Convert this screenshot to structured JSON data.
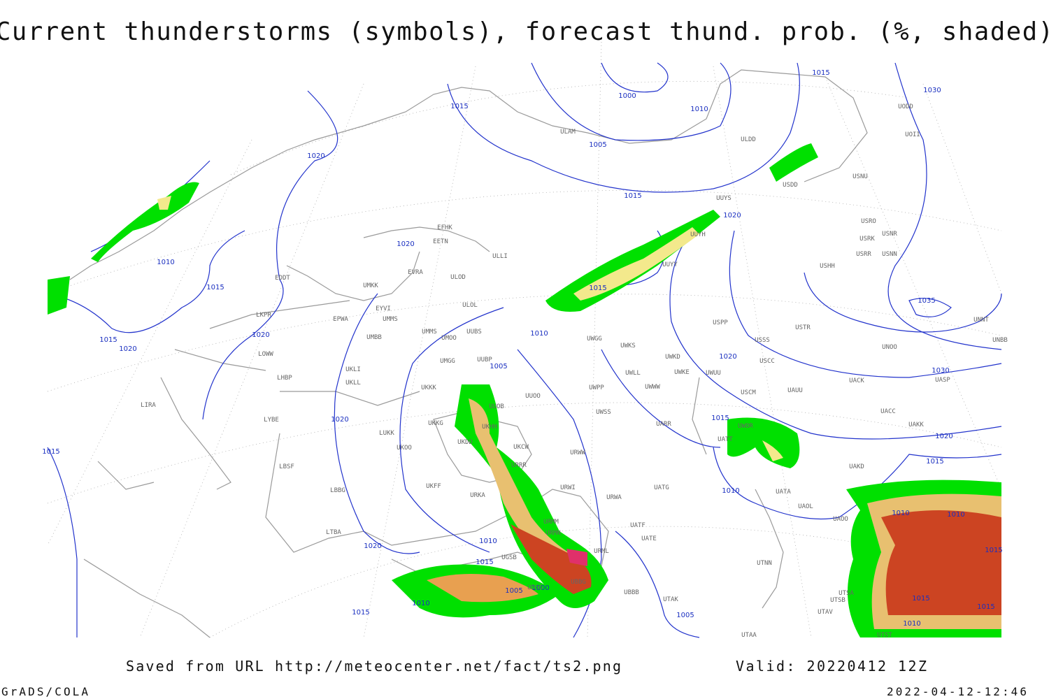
{
  "title": "Current thunderstorms (symbols), forecast thund. prob. (%, shaded)",
  "footer": {
    "saved": "Saved from URL http://meteocenter.net/fact/ts2.png",
    "valid": "Valid: 20220412 12Z",
    "software": "GrADS/COLA",
    "timestamp": "2022-04-12-12:46"
  },
  "map": {
    "isobar_labels": [
      "1015",
      "1030",
      "1000",
      "1010",
      "1015",
      "1005",
      "1020",
      "1015",
      "1020",
      "1020",
      "1010",
      "1015",
      "1015",
      "1035",
      "1010",
      "1015",
      "1020",
      "1020",
      "1005",
      "1020",
      "1030",
      "1020",
      "1015",
      "1020",
      "1015",
      "1015",
      "1010",
      "1010",
      "1010",
      "1010",
      "1020",
      "1015",
      "1015",
      "1005",
      "1000",
      "1015",
      "1015",
      "1010",
      "1015",
      "1005",
      "1010"
    ],
    "station_labels": [
      "UODD",
      "UOII",
      "USNU",
      "ULDD",
      "USDD",
      "UUYS",
      "UUYH",
      "UUYY",
      "ULLI",
      "ULAM",
      "EFHK",
      "EETN",
      "EVRA",
      "ULOD",
      "ULOL",
      "UMKK",
      "EYVI",
      "UMMS",
      "UMMS",
      "UMOO",
      "UUBS",
      "UMBB",
      "EPWA",
      "EDDT",
      "LKPR",
      "LOWW",
      "LHBP",
      "LIRA",
      "LYBE",
      "LBSF",
      "LBBG",
      "LTBA",
      "UKKK",
      "UMGG",
      "UUBP",
      "UKLI",
      "UKLL",
      "UUOO",
      "UUOB",
      "UKHH",
      "UKKG",
      "UKDD",
      "UKCW",
      "URRR",
      "UKOO",
      "LUKK",
      "UKFF",
      "URKA",
      "URWI",
      "URWA",
      "UATG",
      "URML",
      "UGSB",
      "UBBB",
      "UDSG",
      "UBBG",
      "UTAK",
      "UTAA",
      "UTSA",
      "UTSB",
      "UTAV",
      "UTST",
      "UTNN",
      "UAOO",
      "UAOL",
      "UATA",
      "UAKD",
      "UATT",
      "UWOR",
      "UARR",
      "UWSS",
      "UWPP",
      "UWWW",
      "UWLL",
      "UWKE",
      "UWKD",
      "UWUU",
      "UWKS",
      "UWGG",
      "USCM",
      "USCC",
      "USSS",
      "USTR",
      "USPP",
      "UAUU",
      "UACK",
      "UACC",
      "UAKK",
      "UASP",
      "UNOO",
      "UNBB",
      "UNNT",
      "USHH",
      "USRR",
      "USNN",
      "USRK",
      "USNR",
      "USRO",
      "URWW",
      "UATE",
      "UATF",
      "URMM",
      "URMN"
    ]
  }
}
